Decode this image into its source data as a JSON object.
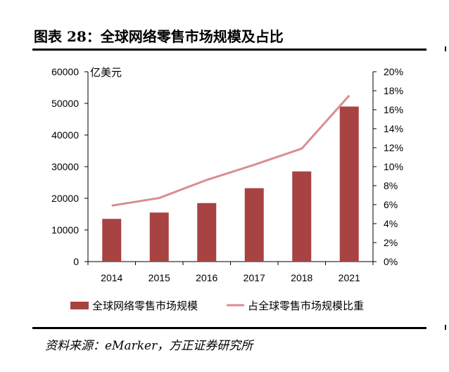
{
  "figure_title": "图表 28：全球网络零售市场规模及占比",
  "source_note": "资料来源：eMarker，方正证券研究所",
  "chart_data": {
    "type": "bar",
    "title": "",
    "categories": [
      "2014",
      "2015",
      "2016",
      "2017",
      "2018",
      "2021"
    ],
    "y_unit": "亿美元",
    "ylim": [
      0,
      60000
    ],
    "y_ticks": [
      "0",
      "10000",
      "20000",
      "30000",
      "40000",
      "50000",
      "60000"
    ],
    "y2lim": [
      0,
      20
    ],
    "y2_ticks": [
      "0%",
      "2%",
      "4%",
      "6%",
      "8%",
      "10%",
      "12%",
      "14%",
      "16%",
      "18%",
      "20%"
    ],
    "series": [
      {
        "name": "全球网络零售市场规模",
        "type": "bar",
        "axis": "left",
        "color": "#a84343",
        "values": [
          13500,
          15500,
          18500,
          23200,
          28500,
          49000
        ]
      },
      {
        "name": "占全球零售市场规模比重",
        "type": "line",
        "axis": "right",
        "color": "#d98e8e",
        "values": [
          5.9,
          6.7,
          8.6,
          10.2,
          11.9,
          17.5
        ]
      }
    ],
    "grid": false,
    "legend_position": "bottom"
  }
}
